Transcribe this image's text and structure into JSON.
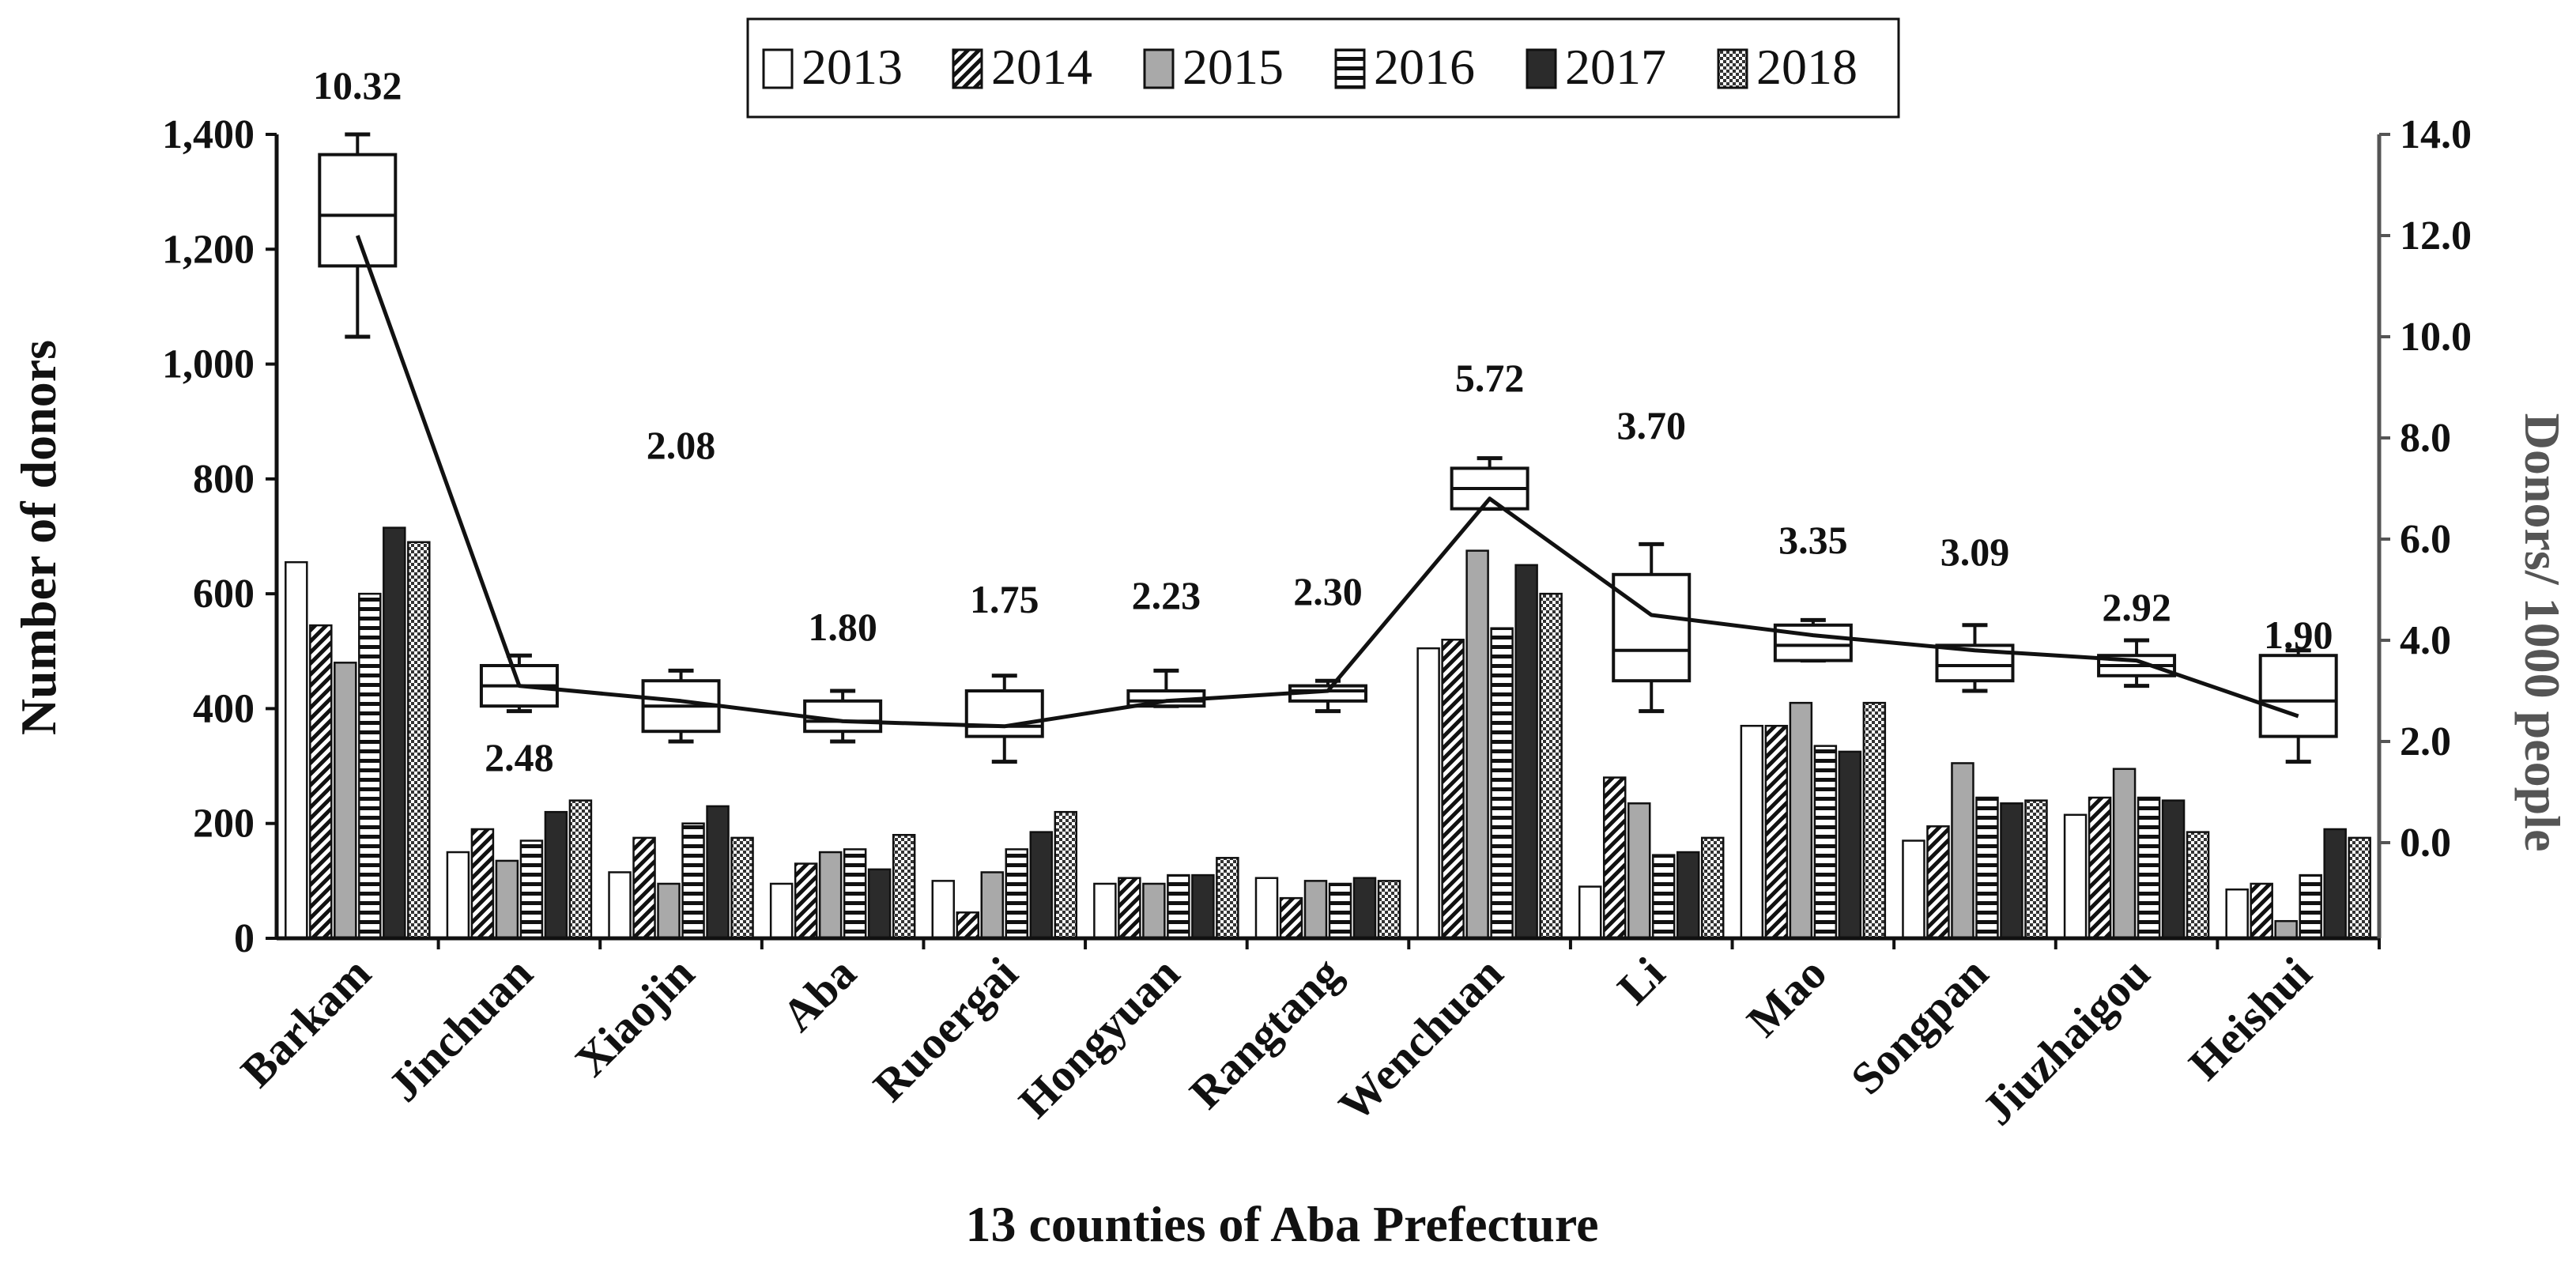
{
  "chart_data": {
    "type": "bar",
    "xlabel": "13 counties of Aba Prefecture",
    "ylabel": "Number of donors",
    "y2label": "Donors/ 1000 people",
    "ylim": [
      0,
      1400
    ],
    "y2lim": [
      -2,
      14
    ],
    "yticks": [
      "0",
      "200",
      "400",
      "600",
      "800",
      "1,000",
      "1,200",
      "1,400"
    ],
    "y2ticks": [
      "0.0",
      "2.0",
      "4.0",
      "6.0",
      "8.0",
      "10.0",
      "12.0",
      "14.0"
    ],
    "categories": [
      "Barkam",
      "Jinchuan",
      "Xiaojin",
      "Aba",
      "Ruoergai",
      "Hongyuan",
      "Rangtang",
      "Wenchuan",
      "Li",
      "Mao",
      "Songpan",
      "Jiuzhaigou",
      "Heishui"
    ],
    "legend": [
      "2013",
      "2014",
      "2015",
      "2016",
      "2017",
      "2018"
    ],
    "series": [
      {
        "name": "2013",
        "values": [
          655,
          150,
          115,
          95,
          100,
          95,
          105,
          505,
          90,
          370,
          170,
          215,
          85
        ]
      },
      {
        "name": "2014",
        "values": [
          545,
          190,
          175,
          130,
          45,
          105,
          70,
          520,
          280,
          370,
          195,
          245,
          95
        ]
      },
      {
        "name": "2015",
        "values": [
          480,
          135,
          95,
          150,
          115,
          95,
          100,
          675,
          235,
          410,
          305,
          295,
          30
        ]
      },
      {
        "name": "2016",
        "values": [
          600,
          170,
          200,
          155,
          155,
          110,
          95,
          540,
          145,
          335,
          245,
          245,
          110
        ]
      },
      {
        "name": "2017",
        "values": [
          715,
          220,
          230,
          120,
          185,
          110,
          105,
          650,
          150,
          325,
          235,
          240,
          190
        ]
      },
      {
        "name": "2018",
        "values": [
          690,
          240,
          175,
          180,
          220,
          140,
          100,
          600,
          175,
          410,
          240,
          185,
          175
        ]
      }
    ],
    "rate_series": {
      "name": "Donors/ 1000 people (mean)",
      "values": [
        12.0,
        3.1,
        2.8,
        2.4,
        2.3,
        2.8,
        3.0,
        6.8,
        4.5,
        4.1,
        3.8,
        3.6,
        2.5
      ]
    },
    "rate_boxes": [
      {
        "min": 10.0,
        "q1": 11.4,
        "median": 12.4,
        "q3": 13.6,
        "max": 14.0
      },
      {
        "min": 2.6,
        "q1": 2.7,
        "median": 3.1,
        "q3": 3.5,
        "max": 3.7
      },
      {
        "min": 2.0,
        "q1": 2.2,
        "median": 2.7,
        "q3": 3.2,
        "max": 3.4
      },
      {
        "min": 2.0,
        "q1": 2.2,
        "median": 2.4,
        "q3": 2.8,
        "max": 3.0
      },
      {
        "min": 1.6,
        "q1": 2.1,
        "median": 2.3,
        "q3": 3.0,
        "max": 3.3
      },
      {
        "min": 2.7,
        "q1": 2.7,
        "median": 2.8,
        "q3": 3.0,
        "max": 3.4
      },
      {
        "min": 2.6,
        "q1": 2.8,
        "median": 3.0,
        "q3": 3.1,
        "max": 3.2
      },
      {
        "min": 6.6,
        "q1": 6.6,
        "median": 7.0,
        "q3": 7.4,
        "max": 7.6
      },
      {
        "min": 2.6,
        "q1": 3.2,
        "median": 3.8,
        "q3": 5.3,
        "max": 5.9
      },
      {
        "min": 3.6,
        "q1": 3.6,
        "median": 3.9,
        "q3": 4.3,
        "max": 4.4
      },
      {
        "min": 3.0,
        "q1": 3.2,
        "median": 3.5,
        "q3": 3.9,
        "max": 4.3
      },
      {
        "min": 3.1,
        "q1": 3.3,
        "median": 3.5,
        "q3": 3.7,
        "max": 4.0
      },
      {
        "min": 1.6,
        "q1": 2.1,
        "median": 2.8,
        "q3": 3.7,
        "max": 3.8
      }
    ],
    "rate_labels": [
      "10.32",
      "2.48",
      "2.08",
      "1.80",
      "1.75",
      "2.23",
      "2.30",
      "5.72",
      "3.70",
      "3.35",
      "3.09",
      "2.92",
      "1.90"
    ],
    "colors": {
      "2013": "#ffffff",
      "2014": "#ffffff",
      "2015": "#a9a9a9",
      "2016": "#ffffff",
      "2017": "#2b2b2b",
      "2018": "#7a7a7a",
      "axis": "#111111",
      "right_axis": "#555555",
      "line": "#111111"
    }
  }
}
